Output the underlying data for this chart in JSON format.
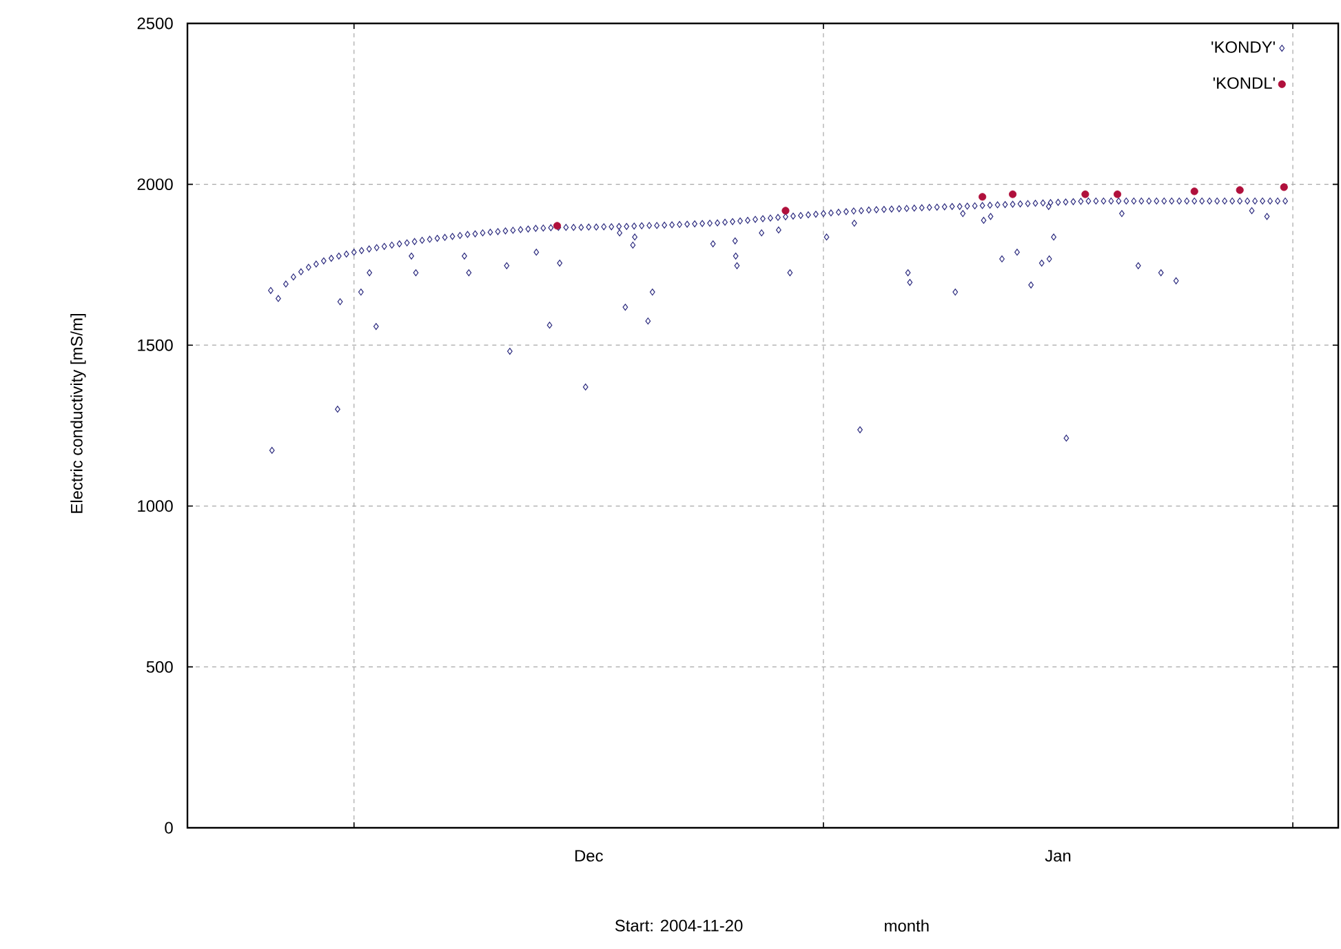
{
  "chart_data": {
    "type": "scatter",
    "ylabel": "Electric conductivity [mS/m]",
    "xlabel": "Start: 2004-11-20",
    "annotations": [
      "month"
    ],
    "xlim": [
      "2004-11-20",
      "2005-02-04"
    ],
    "xticks": [
      {
        "value": "2004-12-01",
        "label": null
      },
      {
        "value": "2004-12-16T12:00",
        "label": "Dec"
      },
      {
        "value": "2005-01-01",
        "label": null
      },
      {
        "value": "2005-01-16T12:00",
        "label": "Jan"
      },
      {
        "value": "2005-02-01",
        "label": null
      }
    ],
    "ylim": [
      0,
      2500
    ],
    "yticks": [
      0,
      500,
      1000,
      1500,
      2000,
      2500
    ],
    "grid": true,
    "legend": "top right",
    "series": [
      {
        "name": "'KONDY'",
        "color": "#2b2a7e",
        "marker": "diamond",
        "x": [
          "2004-11-25T12:00",
          "2004-11-26T00:00",
          "2004-11-26T12:00",
          "2004-11-27T00:00",
          "2004-11-27T12:00",
          "2004-11-28T00:00",
          "2004-11-28T12:00",
          "2004-11-29T00:00",
          "2004-11-29T12:00",
          "2004-11-30T00:00",
          "2004-11-30T12:00",
          "2004-12-01T00:00",
          "2004-12-01T12:00",
          "2004-12-02T00:00",
          "2004-12-02T12:00",
          "2004-12-03T00:00",
          "2004-12-03T12:00",
          "2004-12-04T00:00",
          "2004-12-04T12:00",
          "2004-12-05T00:00",
          "2004-12-05T12:00",
          "2004-12-06T00:00",
          "2004-12-06T12:00",
          "2004-12-07T00:00",
          "2004-12-07T12:00",
          "2004-12-08T00:00",
          "2004-12-08T12:00",
          "2004-12-09T00:00",
          "2004-12-09T12:00",
          "2004-12-10T00:00",
          "2004-12-10T12:00",
          "2004-12-11T00:00",
          "2004-12-11T12:00",
          "2004-12-12T00:00",
          "2004-12-12T12:00",
          "2004-12-13T00:00",
          "2004-12-13T12:00",
          "2004-12-14T00:00",
          "2004-12-14T12:00",
          "2004-12-15T00:00",
          "2004-12-15T12:00",
          "2004-12-16T00:00",
          "2004-12-16T12:00",
          "2004-12-17T00:00",
          "2004-12-17T12:00",
          "2004-12-18T00:00",
          "2004-12-18T12:00",
          "2004-12-19T00:00",
          "2004-12-19T12:00",
          "2004-12-20T00:00",
          "2004-12-20T12:00",
          "2004-12-21T00:00",
          "2004-12-21T12:00",
          "2004-12-22T00:00",
          "2004-12-22T12:00",
          "2004-12-23T00:00",
          "2004-12-23T12:00",
          "2004-12-24T00:00",
          "2004-12-24T12:00",
          "2004-12-25T00:00",
          "2004-12-25T12:00",
          "2004-12-26T00:00",
          "2004-12-26T12:00",
          "2004-12-27T00:00",
          "2004-12-27T12:00",
          "2004-12-28T00:00",
          "2004-12-28T12:00",
          "2004-12-29T00:00",
          "2004-12-29T12:00",
          "2004-12-30T00:00",
          "2004-12-30T12:00",
          "2004-12-31T00:00",
          "2004-12-31T12:00",
          "2005-01-01T00:00",
          "2005-01-01T12:00",
          "2005-01-02T00:00",
          "2005-01-02T12:00",
          "2005-01-03T00:00",
          "2005-01-03T12:00",
          "2005-01-04T00:00",
          "2005-01-04T12:00",
          "2005-01-05T00:00",
          "2005-01-05T12:00",
          "2005-01-06T00:00",
          "2005-01-06T12:00",
          "2005-01-07T00:00",
          "2005-01-07T12:00",
          "2005-01-08T00:00",
          "2005-01-08T12:00",
          "2005-01-09T00:00",
          "2005-01-09T12:00",
          "2005-01-10T00:00",
          "2005-01-10T12:00",
          "2005-01-11T00:00",
          "2005-01-11T12:00",
          "2005-01-12T00:00",
          "2005-01-12T12:00",
          "2005-01-13T00:00",
          "2005-01-13T12:00",
          "2005-01-14T00:00",
          "2005-01-14T12:00",
          "2005-01-15T00:00",
          "2005-01-15T12:00",
          "2005-01-16T00:00",
          "2005-01-16T12:00",
          "2005-01-17T00:00",
          "2005-01-17T12:00",
          "2005-01-18T00:00",
          "2005-01-18T12:00",
          "2005-01-19T00:00",
          "2005-01-19T12:00",
          "2005-01-20T00:00",
          "2005-01-20T12:00",
          "2005-01-21T00:00",
          "2005-01-21T12:00",
          "2005-01-22T00:00",
          "2005-01-22T12:00",
          "2005-01-23T00:00",
          "2005-01-23T12:00",
          "2005-01-24T00:00",
          "2005-01-24T12:00",
          "2005-01-25T00:00",
          "2005-01-25T12:00",
          "2005-01-26T00:00",
          "2005-01-26T12:00",
          "2005-01-27T00:00",
          "2005-01-27T12:00",
          "2005-01-28T00:00",
          "2005-01-28T12:00",
          "2005-01-29T00:00",
          "2005-01-29T12:00",
          "2005-01-30T00:00",
          "2005-01-30T12:00",
          "2005-01-31T00:00",
          "2005-01-31T12:00",
          "2004-11-25T14:00",
          "2004-11-29T22:00",
          "2004-11-30T02:00",
          "2004-12-01T11:00",
          "2004-12-02T00:30",
          "2004-12-02T11:00",
          "2004-12-04T19:00",
          "2004-12-05T02:00",
          "2004-12-08T07:00",
          "2004-12-08T14:00",
          "2004-12-11T02:00",
          "2004-12-11T07:00",
          "2004-12-13T01:00",
          "2004-12-13T22:00",
          "2004-12-14T14:00",
          "2004-12-16T07:00",
          "2004-12-18T13:00",
          "2004-12-18T22:00",
          "2004-12-19T10:00",
          "2004-12-19T13:00",
          "2004-12-20T10:00",
          "2004-12-20T17:00",
          "2004-12-24T17:00",
          "2004-12-26T04:00",
          "2004-12-26T05:00",
          "2004-12-26T07:00",
          "2004-12-27T22:00",
          "2004-12-29T01:00",
          "2004-12-29T19:00",
          "2005-01-01T05:00",
          "2005-01-03T01:00",
          "2005-01-03T10:00",
          "2005-01-06T14:00",
          "2005-01-06T17:00",
          "2005-01-09T17:00",
          "2005-01-10T05:00",
          "2005-01-11T14:00",
          "2005-01-12T01:00",
          "2005-01-12T19:00",
          "2005-01-13T19:00",
          "2005-01-14T17:00",
          "2005-01-15T10:00",
          "2005-01-15T21:00",
          "2005-01-15T22:00",
          "2005-01-16T05:00",
          "2005-01-17T01:00",
          "2005-01-20T17:00",
          "2005-01-21T19:00",
          "2005-01-23T07:00",
          "2005-01-24T07:00",
          "2005-01-29T07:00",
          "2005-01-30T07:00"
        ],
        "values": [
          1670,
          1645,
          1690,
          1712,
          1728,
          1742,
          1752,
          1762,
          1770,
          1777,
          1783,
          1789,
          1794,
          1799,
          1803,
          1807,
          1811,
          1815,
          1818,
          1822,
          1826,
          1829,
          1832,
          1835,
          1838,
          1841,
          1844,
          1846,
          1849,
          1851,
          1853,
          1855,
          1857,
          1859,
          1861,
          1863,
          1864,
          1865,
          1866,
          1866,
          1866,
          1866,
          1867,
          1867,
          1868,
          1868,
          1869,
          1869,
          1870,
          1871,
          1872,
          1872,
          1873,
          1874,
          1875,
          1876,
          1877,
          1878,
          1879,
          1880,
          1882,
          1884,
          1886,
          1888,
          1891,
          1893,
          1895,
          1897,
          1899,
          1901,
          1903,
          1905,
          1907,
          1909,
          1911,
          1913,
          1915,
          1917,
          1918,
          1920,
          1921,
          1922,
          1923,
          1924,
          1925,
          1926,
          1927,
          1928,
          1929,
          1930,
          1931,
          1931,
          1932,
          1933,
          1934,
          1935,
          1936,
          1937,
          1938,
          1939,
          1940,
          1941,
          1942,
          1943,
          1944,
          1945,
          1946,
          1947,
          1948,
          1948,
          1948,
          1948,
          1948,
          1948,
          1948,
          1948,
          1948,
          1948,
          1948,
          1948,
          1948,
          1948,
          1948,
          1948,
          1948,
          1948,
          1948,
          1948,
          1948,
          1948,
          1948,
          1948,
          1948,
          1948,
          1948,
          1173,
          1301,
          1635,
          1665,
          1725,
          1558,
          1777,
          1725,
          1777,
          1725,
          1747,
          1481,
          1789,
          1562,
          1755,
          1370,
          1849,
          1618,
          1811,
          1836,
          1575,
          1665,
          1815,
          1824,
          1777,
          1747,
          1849,
          1858,
          1725,
          1836,
          1879,
          1237,
          1725,
          1695,
          1665,
          1909,
          1888,
          1900,
          1768,
          1789,
          1687,
          1755,
          1931,
          1768,
          1836,
          1211,
          1909,
          1747,
          1725,
          1700,
          1918,
          1900
        ]
      },
      {
        "name": "'KONDL'",
        "color": "#b0103c",
        "marker": "circle",
        "x": [
          "2004-12-14T10:00",
          "2004-12-29T12:00",
          "2005-01-11T12:00",
          "2005-01-13T12:00",
          "2005-01-18T07:00",
          "2005-01-20T10:00",
          "2005-01-25T12:00",
          "2005-01-28T12:00",
          "2005-01-31T10:00"
        ],
        "values": [
          1871,
          1918,
          1961,
          1969,
          1969,
          1969,
          1978,
          1982,
          1991
        ]
      }
    ]
  }
}
